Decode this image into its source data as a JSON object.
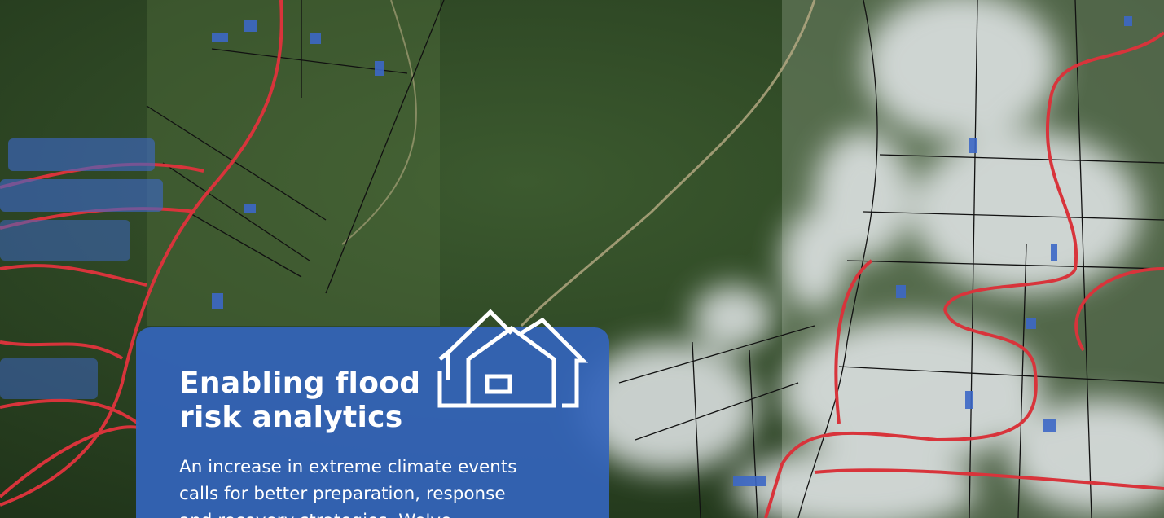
{
  "card": {
    "title_lines": [
      "Enabling flood",
      "risk analytics"
    ],
    "body_lines": [
      "An increase in extreme climate events",
      "calls for better preparation, response",
      "and recovery strategies. We've"
    ]
  }
}
